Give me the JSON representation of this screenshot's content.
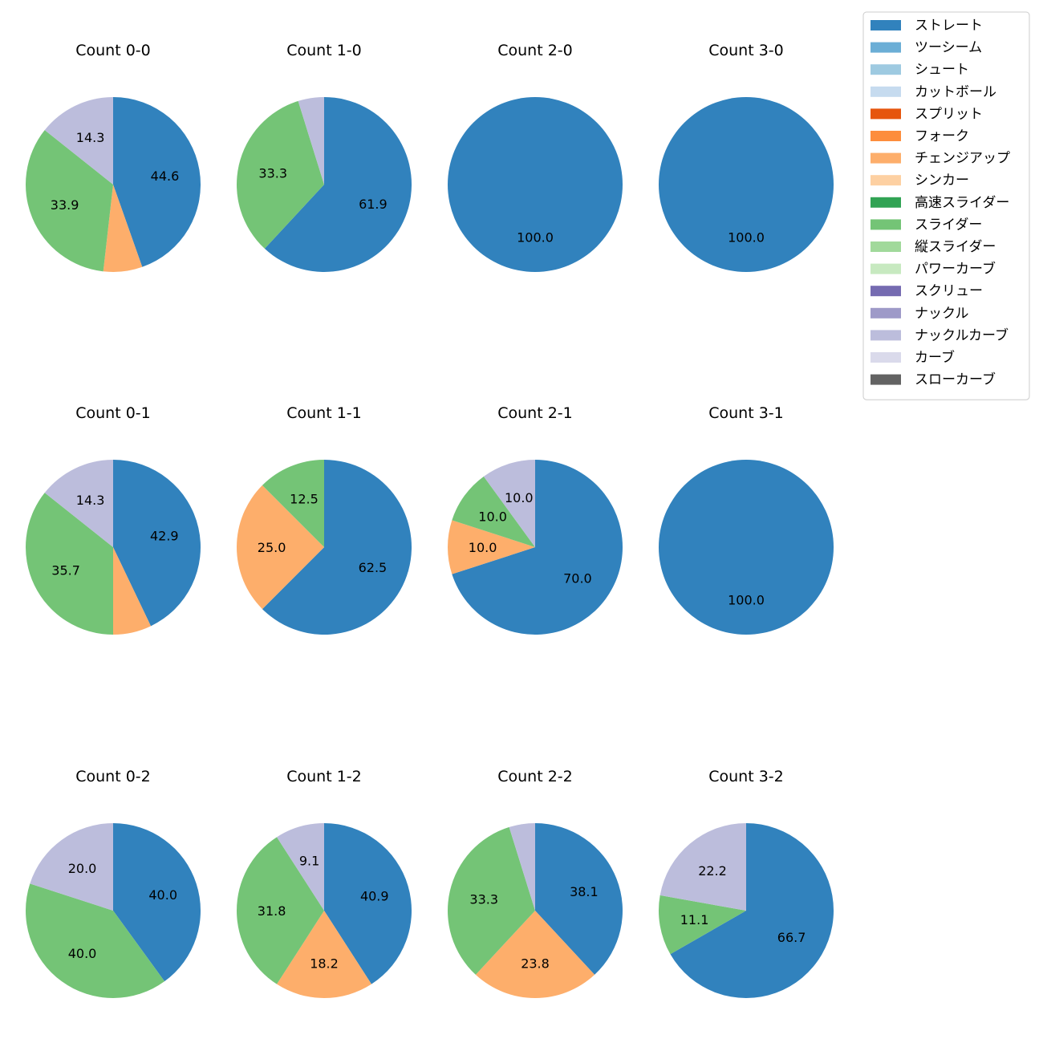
{
  "chart_data": {
    "type": "pie",
    "legend": {
      "placement": "top-right",
      "entries": [
        {
          "name": "ストレート",
          "color": "#3182bd"
        },
        {
          "name": "ツーシーム",
          "color": "#6baed6"
        },
        {
          "name": "シュート",
          "color": "#9ecae1"
        },
        {
          "name": "カットボール",
          "color": "#c6dbef"
        },
        {
          "name": "スプリット",
          "color": "#e6550d"
        },
        {
          "name": "フォーク",
          "color": "#fd8d3c"
        },
        {
          "name": "チェンジアップ",
          "color": "#fdae6b"
        },
        {
          "name": "シンカー",
          "color": "#fdd0a2"
        },
        {
          "name": "高速スライダー",
          "color": "#31a354"
        },
        {
          "name": "スライダー",
          "color": "#74c476"
        },
        {
          "name": "縦スライダー",
          "color": "#a1d99b"
        },
        {
          "name": "パワーカーブ",
          "color": "#c7e9c0"
        },
        {
          "name": "スクリュー",
          "color": "#756bb1"
        },
        {
          "name": "ナックル",
          "color": "#9e9ac8"
        },
        {
          "name": "ナックルカーブ",
          "color": "#bcbddc"
        },
        {
          "name": "カーブ",
          "color": "#dadaeb"
        },
        {
          "name": "スローカーブ",
          "color": "#636363"
        }
      ]
    },
    "pies": [
      {
        "title": "Count 0-0",
        "slices": [
          {
            "name": "ストレート",
            "value": 44.6,
            "label": "44.6"
          },
          {
            "name": "チェンジアップ",
            "value": 7.2,
            "label": ""
          },
          {
            "name": "スライダー",
            "value": 33.9,
            "label": "33.9"
          },
          {
            "name": "ナックルカーブ",
            "value": 14.3,
            "label": "14.3"
          }
        ]
      },
      {
        "title": "Count 1-0",
        "slices": [
          {
            "name": "ストレート",
            "value": 61.9,
            "label": "61.9"
          },
          {
            "name": "スライダー",
            "value": 33.3,
            "label": "33.3"
          },
          {
            "name": "ナックルカーブ",
            "value": 4.8,
            "label": ""
          }
        ]
      },
      {
        "title": "Count 2-0",
        "slices": [
          {
            "name": "ストレート",
            "value": 100.0,
            "label": "100.0"
          }
        ]
      },
      {
        "title": "Count 3-0",
        "slices": [
          {
            "name": "ストレート",
            "value": 100.0,
            "label": "100.0"
          }
        ]
      },
      {
        "title": "Count 0-1",
        "slices": [
          {
            "name": "ストレート",
            "value": 42.9,
            "label": "42.9"
          },
          {
            "name": "チェンジアップ",
            "value": 7.1,
            "label": ""
          },
          {
            "name": "スライダー",
            "value": 35.7,
            "label": "35.7"
          },
          {
            "name": "ナックルカーブ",
            "value": 14.3,
            "label": "14.3"
          }
        ]
      },
      {
        "title": "Count 1-1",
        "slices": [
          {
            "name": "ストレート",
            "value": 62.5,
            "label": "62.5"
          },
          {
            "name": "チェンジアップ",
            "value": 25.0,
            "label": "25.0"
          },
          {
            "name": "スライダー",
            "value": 12.5,
            "label": "12.5"
          }
        ]
      },
      {
        "title": "Count 2-1",
        "slices": [
          {
            "name": "ストレート",
            "value": 70.0,
            "label": "70.0"
          },
          {
            "name": "チェンジアップ",
            "value": 10.0,
            "label": "10.0"
          },
          {
            "name": "スライダー",
            "value": 10.0,
            "label": "10.0"
          },
          {
            "name": "ナックルカーブ",
            "value": 10.0,
            "label": "10.0"
          }
        ]
      },
      {
        "title": "Count 3-1",
        "slices": [
          {
            "name": "ストレート",
            "value": 100.0,
            "label": "100.0"
          }
        ]
      },
      {
        "title": "Count 0-2",
        "slices": [
          {
            "name": "ストレート",
            "value": 40.0,
            "label": "40.0"
          },
          {
            "name": "スライダー",
            "value": 40.0,
            "label": "40.0"
          },
          {
            "name": "ナックルカーブ",
            "value": 20.0,
            "label": "20.0"
          }
        ]
      },
      {
        "title": "Count 1-2",
        "slices": [
          {
            "name": "ストレート",
            "value": 40.9,
            "label": "40.9"
          },
          {
            "name": "チェンジアップ",
            "value": 18.2,
            "label": "18.2"
          },
          {
            "name": "スライダー",
            "value": 31.8,
            "label": "31.8"
          },
          {
            "name": "ナックルカーブ",
            "value": 9.1,
            "label": "9.1"
          }
        ]
      },
      {
        "title": "Count 2-2",
        "slices": [
          {
            "name": "ストレート",
            "value": 38.1,
            "label": "38.1"
          },
          {
            "name": "チェンジアップ",
            "value": 23.8,
            "label": "23.8"
          },
          {
            "name": "スライダー",
            "value": 33.3,
            "label": "33.3"
          },
          {
            "name": "ナックルカーブ",
            "value": 4.8,
            "label": ""
          }
        ]
      },
      {
        "title": "Count 3-2",
        "slices": [
          {
            "name": "ストレート",
            "value": 66.7,
            "label": "66.7"
          },
          {
            "name": "スライダー",
            "value": 11.1,
            "label": "11.1"
          },
          {
            "name": "ナックルカーブ",
            "value": 22.2,
            "label": "22.2"
          }
        ]
      }
    ]
  }
}
